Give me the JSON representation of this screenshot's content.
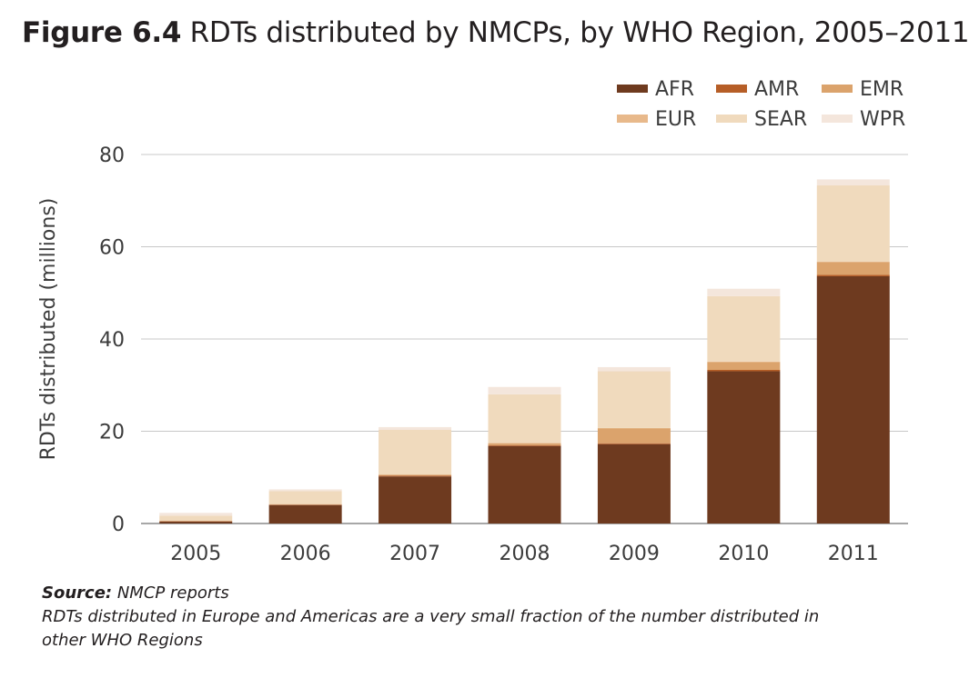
{
  "figure": {
    "label": "Figure 6.4",
    "title": "RDTs distributed by NMCPs, by WHO Region, 2005–2011"
  },
  "source": {
    "label": "Source:",
    "text": "NMCP reports",
    "note_line1": "RDTs distributed in Europe and Americas are a very small fraction of the number distributed in",
    "note_line2": "other WHO Regions"
  },
  "chart_data": {
    "type": "bar",
    "stacked": true,
    "categories": [
      "2005",
      "2006",
      "2007",
      "2008",
      "2009",
      "2010",
      "2011"
    ],
    "series": [
      {
        "name": "AFR",
        "color": "#6e3a1f",
        "values": [
          0.4,
          4.0,
          10.2,
          16.8,
          17.2,
          33.0,
          53.6
        ]
      },
      {
        "name": "AMR",
        "color": "#b65e27",
        "values": [
          0.1,
          0.1,
          0.2,
          0.2,
          0.2,
          0.3,
          0.3
        ]
      },
      {
        "name": "EMR",
        "color": "#dba36c",
        "values": [
          0.0,
          0.1,
          0.2,
          0.4,
          3.2,
          1.7,
          2.8
        ]
      },
      {
        "name": "EUR",
        "color": "#e8b98b",
        "values": [
          0.0,
          0.0,
          0.0,
          0.1,
          0.1,
          0.1,
          0.1
        ]
      },
      {
        "name": "SEAR",
        "color": "#f0dabd",
        "values": [
          1.2,
          2.8,
          9.7,
          10.5,
          12.3,
          14.2,
          16.5
        ]
      },
      {
        "name": "WPR",
        "color": "#f4e6dc",
        "values": [
          0.6,
          0.4,
          0.6,
          1.6,
          0.9,
          1.6,
          1.3
        ]
      }
    ],
    "ylabel": "RDTs distributed (millions)",
    "ylim": [
      0,
      80
    ],
    "yticks": [
      0,
      20,
      40,
      60,
      80
    ],
    "grid": true,
    "legend": "top-right"
  }
}
